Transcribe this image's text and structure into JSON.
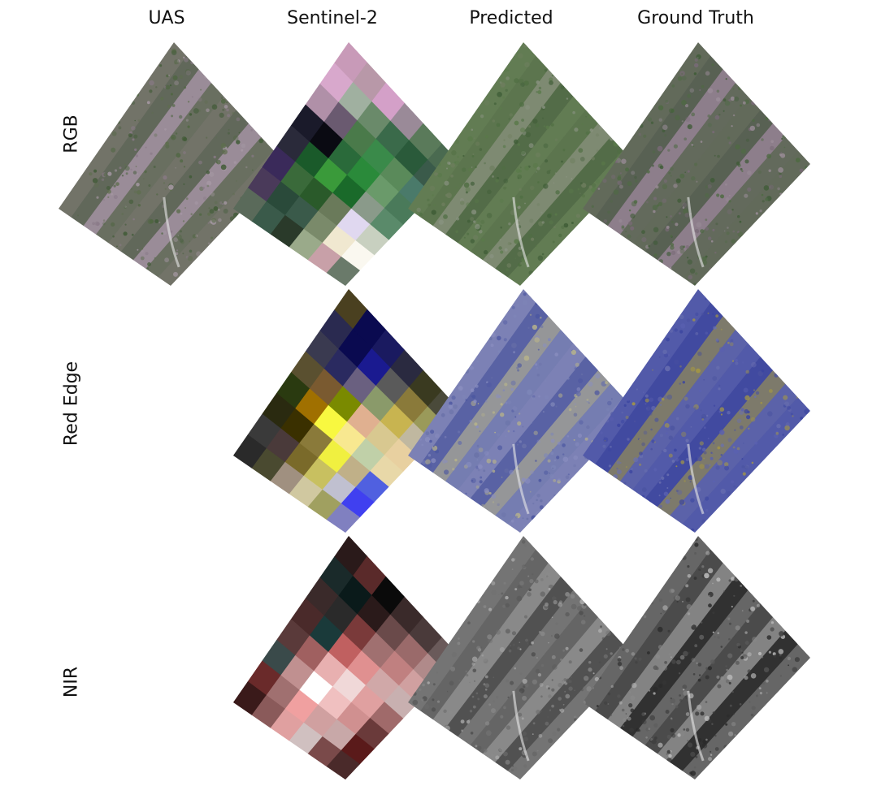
{
  "columns": [
    "UAS",
    "Sentinel-2",
    "Predicted",
    "Ground Truth"
  ],
  "rows": [
    "RGB",
    "Red Edge",
    "NIR"
  ],
  "palettes": {
    "uas_rgb": [
      "#8a7a88",
      "#5e6e4e",
      "#3f5a35",
      "#a89aa6",
      "#4e6640"
    ],
    "pred_rgb": [
      "#6e7e5e",
      "#5a7a4a",
      "#4f6e42",
      "#8c9484",
      "#3e5c36"
    ],
    "gt_rgb": [
      "#7a6a78",
      "#4e6a42",
      "#3c5a34",
      "#9c8e9a",
      "#506a46"
    ],
    "pred_re": [
      "#6a72a8",
      "#8a8ec0",
      "#4a55a0",
      "#b8b48a",
      "#7e86b8"
    ],
    "gt_re": [
      "#4a52a0",
      "#5a60b0",
      "#3a44a0",
      "#a89a40",
      "#6a70b0"
    ],
    "pred_nir": [
      "#5a5a5a",
      "#8a8a8a",
      "#707070",
      "#b0b0b0",
      "#4a4a4a"
    ],
    "gt_nir": [
      "#3a3a3a",
      "#8a8a8a",
      "#5a5a5a",
      "#c0c0c0",
      "#2a2a2a"
    ],
    "s2_rgb": [
      "#c89ab8",
      "#b898a8",
      "#d4a0c8",
      "#9a8a98",
      "#5a7a5a",
      "#4a6a50",
      "#d8a8cc",
      "#a0b0a0",
      "#6a8a6a",
      "#3a6a4a",
      "#2a5a3a",
      "#3a5a4a",
      "#b090a8",
      "#6a5a70",
      "#4a7a4a",
      "#3a8a4a",
      "#5a8a5a",
      "#4a7a6a",
      "#1a1a2a",
      "#0a0a12",
      "#2a6a3a",
      "#2a8a3a",
      "#6a9a6a",
      "#4a7a5a",
      "#2a2a3a",
      "#1a5a2a",
      "#3a9a3a",
      "#1a6a2a",
      "#8a9a8a",
      "#5a8a6a",
      "#3a2a5a",
      "#3a6a3a",
      "#2a5a2a",
      "#6a7a5a",
      "#e0d8f0",
      "#c8d0c0",
      "#4a3a5a",
      "#2a4a3a",
      "#3a5a4a",
      "#7a8a6a",
      "#f0e8d0",
      "#faf8f0",
      "#5a6a5a",
      "#3a5a4a",
      "#2a3a2a",
      "#9aaa8a",
      "#c8a0a8",
      "#6a7a6a"
    ],
    "s2_re": [
      "#4a4020",
      "#0a0a50",
      "#1a1a60",
      "#2a2a40",
      "#3a3a20",
      "#4a4a3a",
      "#2a2a50",
      "#0a0a50",
      "#1a1a90",
      "#5a5a5a",
      "#8a7a3a",
      "#9a9a5a",
      "#3a3a50",
      "#2a2a60",
      "#6a6080",
      "#8a9a6a",
      "#c8b450",
      "#c0b8a0",
      "#5a5030",
      "#7a5a30",
      "#7a8a00",
      "#e0b090",
      "#d8c890",
      "#e8d0a0",
      "#2a3a10",
      "#a07000",
      "#f8f840",
      "#f8e890",
      "#c0d0a8",
      "#e8d8a8",
      "#2a2a10",
      "#3a3000",
      "#8a7a3a",
      "#f0f040",
      "#c0b088",
      "#5060e0",
      "#3a3a3a",
      "#4a3a3a",
      "#7a6a2a",
      "#c8c060",
      "#c0c0d0",
      "#4040f0",
      "#2a2a2a",
      "#4a4a30",
      "#a09080",
      "#d0c8a0",
      "#a0a060",
      "#8080c0"
    ],
    "s2_nir": [
      "#2a1a1a",
      "#5a2a2a",
      "#0a0a0a",
      "#3a2a2a",
      "#4a3a3a",
      "#6a5a5a",
      "#1a2a2a",
      "#0a1a1a",
      "#2a1a1a",
      "#6a4a4a",
      "#9a6a6a",
      "#b08a8a",
      "#3a2a2a",
      "#2a2a2a",
      "#7a3a3a",
      "#a07070",
      "#c08080",
      "#d0a0a0",
      "#4a2a2a",
      "#1a3a3a",
      "#c06060",
      "#e09090",
      "#d0a8a8",
      "#c8b0b0",
      "#5a3a3a",
      "#a06060",
      "#e8b0b0",
      "#f0d8d8",
      "#e0a0a0",
      "#a06a6a",
      "#3a4a4a",
      "#c09090",
      "#ffffff",
      "#f0c0c0",
      "#d09090",
      "#6a3a3a",
      "#6a2a2a",
      "#a07070",
      "#f0a0a0",
      "#d0a0a0",
      "#c8a8a8",
      "#5a1a1a",
      "#3a1a1a",
      "#8a5a5a",
      "#e0a0a0",
      "#d0c0c0",
      "#7a4a4a",
      "#4a2a2a"
    ]
  }
}
